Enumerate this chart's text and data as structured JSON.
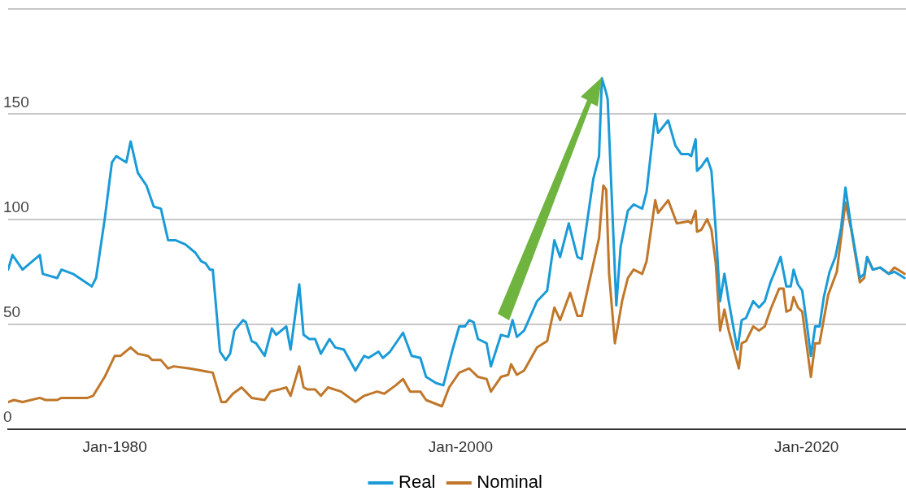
{
  "chart_data": {
    "type": "line",
    "xlim": [
      "1973-11",
      "2025-10"
    ],
    "xticks": [
      {
        "value": "1980-01",
        "label": "Jan-1980"
      },
      {
        "value": "2000-01",
        "label": "Jan-2000"
      },
      {
        "value": "2020-01",
        "label": "Jan-2020"
      }
    ],
    "ylim": [
      0,
      200
    ],
    "yticks": [
      0,
      50,
      100,
      150,
      {
        "value": 200,
        "label": null
      }
    ],
    "grid": "y",
    "legend": "bottom",
    "marker": "none",
    "line_style": "solid",
    "series": [
      {
        "name": "Real",
        "color": "#1a9bd7",
        "x": [
          "1973-11",
          "1974-02",
          "1974-09",
          "1975-09",
          "1975-11",
          "1976-09",
          "1976-12",
          "1977-08",
          "1978-09",
          "1978-12",
          "1979-06",
          "1979-11",
          "1980-02",
          "1980-09",
          "1980-12",
          "1981-05",
          "1981-11",
          "1982-04",
          "1982-09",
          "1983-02",
          "1983-07",
          "1984-02",
          "1984-09",
          "1985-01",
          "1985-04",
          "1985-07",
          "1985-09",
          "1986-02",
          "1986-06",
          "1986-09",
          "1986-12",
          "1987-06",
          "1987-08",
          "1987-12",
          "1988-03",
          "1988-09",
          "1989-02",
          "1989-05",
          "1989-12",
          "1990-03",
          "1990-09",
          "1990-12",
          "1991-04",
          "1991-08",
          "1991-12",
          "1992-06",
          "1992-10",
          "1993-04",
          "1993-12",
          "1994-06",
          "1994-09",
          "1995-04",
          "1995-07",
          "1995-12",
          "1996-09",
          "1997-03",
          "1997-09",
          "1998-01",
          "1998-08",
          "1999-01",
          "1999-07",
          "1999-12",
          "2000-04",
          "2000-07",
          "2000-10",
          "2001-01",
          "2001-07",
          "2001-10",
          "2002-05",
          "2002-10",
          "2003-01",
          "2003-04",
          "2003-09",
          "2004-06",
          "2005-01",
          "2005-06",
          "2005-10",
          "2006-04",
          "2006-10",
          "2007-01",
          "2007-09",
          "2008-01",
          "2008-03",
          "2008-06",
          "2008-07",
          "2009-01",
          "2009-04",
          "2009-09",
          "2010-01",
          "2010-07",
          "2010-10",
          "2011-04",
          "2011-06",
          "2012-01",
          "2012-06",
          "2012-10",
          "2013-03",
          "2013-05",
          "2013-08",
          "2013-09",
          "2013-12",
          "2014-04",
          "2014-07",
          "2014-10",
          "2015-01",
          "2015-04",
          "2015-07",
          "2016-01",
          "2016-04",
          "2016-07",
          "2016-12",
          "2017-04",
          "2017-08",
          "2017-12",
          "2018-03",
          "2018-07",
          "2018-11",
          "2019-02",
          "2019-04",
          "2019-07",
          "2019-10",
          "2020-01",
          "2020-04",
          "2020-07",
          "2020-10",
          "2021-01",
          "2021-05",
          "2021-09",
          "2022-01",
          "2022-04",
          "2022-08",
          "2023-02",
          "2023-05",
          "2023-07",
          "2023-11",
          "2024-04",
          "2024-10",
          "2025-02",
          "2025-09"
        ],
        "values": [
          76,
          83,
          76,
          83,
          74,
          72,
          76,
          74,
          68,
          72,
          100,
          127,
          130,
          127,
          137,
          122,
          116,
          106,
          105,
          90,
          90,
          88,
          84,
          80,
          79,
          76,
          76,
          37,
          33,
          36,
          47,
          52,
          51,
          42,
          41,
          35,
          48,
          45,
          49,
          38,
          69,
          45,
          43,
          43,
          36,
          43,
          39,
          38,
          28,
          35,
          34,
          37,
          34,
          37,
          46,
          35,
          34,
          25,
          22,
          21,
          37,
          49,
          49,
          52,
          51,
          43,
          41,
          30,
          45,
          44,
          52,
          44,
          47,
          61,
          66,
          90,
          82,
          98,
          82,
          81,
          119,
          130,
          167,
          160,
          157,
          59,
          87,
          104,
          107,
          105,
          113,
          150,
          141,
          147,
          135,
          131,
          131,
          130,
          138,
          123,
          125,
          129,
          123,
          95,
          61,
          74,
          61,
          38,
          52,
          53,
          61,
          58,
          61,
          70,
          75,
          82,
          68,
          68,
          76,
          69,
          66,
          51,
          35,
          49,
          49,
          63,
          75,
          82,
          96,
          115,
          96,
          72,
          74,
          82,
          76,
          77,
          74,
          75,
          72
        ]
      },
      {
        "name": "Nominal",
        "color": "#c0772a",
        "x": [
          "1973-11",
          "1974-03",
          "1974-09",
          "1975-09",
          "1976-01",
          "1976-09",
          "1976-12",
          "1978-06",
          "1978-10",
          "1979-06",
          "1980-01",
          "1980-05",
          "1980-12",
          "1981-05",
          "1981-12",
          "1982-03",
          "1982-09",
          "1983-02",
          "1983-06",
          "1984-05",
          "1985-01",
          "1985-09",
          "1986-03",
          "1986-06",
          "1986-11",
          "1987-05",
          "1987-12",
          "1988-09",
          "1989-01",
          "1989-07",
          "1989-12",
          "1990-03",
          "1990-09",
          "1990-12",
          "1991-03",
          "1991-08",
          "1991-12",
          "1992-05",
          "1993-02",
          "1993-12",
          "1994-06",
          "1995-03",
          "1995-08",
          "1996-04",
          "1996-09",
          "1997-02",
          "1997-09",
          "1998-01",
          "1998-12",
          "1999-05",
          "1999-12",
          "2000-07",
          "2001-01",
          "2001-07",
          "2001-10",
          "2002-05",
          "2002-10",
          "2002-12",
          "2003-04",
          "2003-09",
          "2004-06",
          "2005-01",
          "2005-06",
          "2005-10",
          "2006-05",
          "2006-10",
          "2007-01",
          "2008-01",
          "2008-04",
          "2008-06",
          "2008-08",
          "2008-12",
          "2009-05",
          "2009-09",
          "2010-01",
          "2010-07",
          "2010-10",
          "2011-04",
          "2011-06",
          "2012-01",
          "2012-07",
          "2013-03",
          "2013-05",
          "2013-08",
          "2013-09",
          "2013-12",
          "2014-04",
          "2014-07",
          "2014-10",
          "2015-01",
          "2015-04",
          "2015-07",
          "2016-02",
          "2016-04",
          "2016-07",
          "2016-12",
          "2017-04",
          "2017-08",
          "2017-12",
          "2018-06",
          "2018-09",
          "2018-11",
          "2019-02",
          "2019-04",
          "2019-07",
          "2019-10",
          "2020-04",
          "2020-07",
          "2020-10",
          "2021-04",
          "2021-10",
          "2022-04",
          "2022-08",
          "2023-02",
          "2023-05",
          "2023-07",
          "2023-11",
          "2024-04",
          "2024-10",
          "2025-02",
          "2025-09"
        ],
        "values": [
          13,
          14,
          13,
          15,
          14,
          14,
          15,
          15,
          16,
          25,
          35,
          35,
          39,
          36,
          35,
          33,
          33,
          29,
          30,
          29,
          28,
          27,
          13,
          13,
          17,
          20,
          15,
          14,
          18,
          19,
          20,
          16,
          30,
          20,
          19,
          19,
          16,
          20,
          18,
          13,
          16,
          18,
          17,
          21,
          24,
          18,
          18,
          14,
          11,
          20,
          27,
          29,
          25,
          24,
          18,
          25,
          26,
          31,
          26,
          28,
          39,
          42,
          58,
          52,
          65,
          54,
          54,
          91,
          116,
          114,
          74,
          41,
          61,
          72,
          76,
          74,
          80,
          109,
          103,
          109,
          98,
          99,
          98,
          104,
          94,
          95,
          100,
          95,
          79,
          47,
          57,
          47,
          29,
          41,
          42,
          49,
          47,
          49,
          57,
          67,
          67,
          56,
          57,
          63,
          58,
          56,
          25,
          41,
          41,
          64,
          75,
          108,
          95,
          70,
          72,
          82,
          76,
          77,
          74,
          77,
          74
        ]
      }
    ]
  }
}
